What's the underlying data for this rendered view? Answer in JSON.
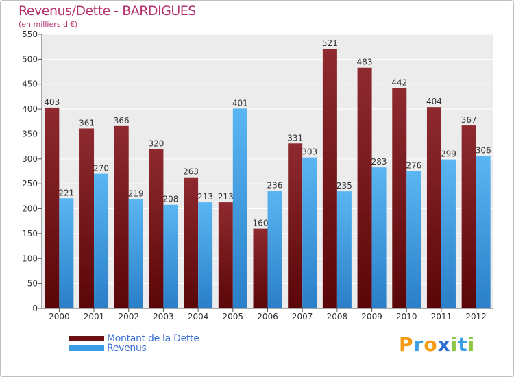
{
  "chart_data": {
    "type": "bar",
    "title": "Revenus/Dette - BARDIGUES",
    "subtitle": "(en milliers d'€)",
    "xlabel": "",
    "ylabel": "",
    "categories": [
      "2000",
      "2001",
      "2002",
      "2003",
      "2004",
      "2005",
      "2006",
      "2007",
      "2008",
      "2009",
      "2010",
      "2011",
      "2012"
    ],
    "series": [
      {
        "name": "Montant de la Dette",
        "color": "#7a1a1e",
        "values": [
          403,
          361,
          366,
          320,
          263,
          213,
          160,
          331,
          521,
          483,
          442,
          404,
          367
        ]
      },
      {
        "name": "Revenus",
        "color": "#3a9ee6",
        "values": [
          221,
          270,
          219,
          208,
          213,
          401,
          236,
          303,
          235,
          283,
          276,
          299,
          306
        ]
      }
    ],
    "ylim": [
      0,
      550
    ],
    "yticks": [
      0,
      50,
      100,
      150,
      200,
      250,
      300,
      350,
      400,
      450,
      500,
      550
    ],
    "grid": true,
    "legend": "bottom-left"
  },
  "logo": {
    "letters": [
      "P",
      "r",
      "o",
      "x",
      "i",
      "t",
      "i"
    ],
    "colors": [
      "#f39c12",
      "#3a9ee6",
      "#f39c12",
      "#2c6fd1",
      "#8dc63f",
      "#3a9ee6",
      "#8dc63f"
    ]
  }
}
